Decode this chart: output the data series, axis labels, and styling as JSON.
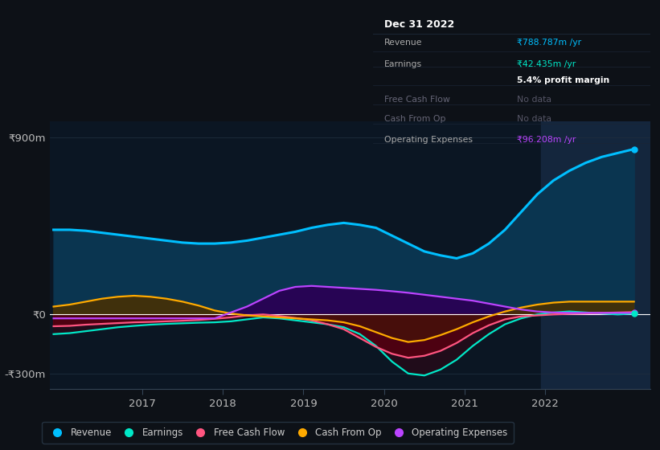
{
  "background_color": "#0d1117",
  "plot_bg_color": "#0b1623",
  "ylim": [
    -380,
    980
  ],
  "yticks": [
    -300,
    0,
    900
  ],
  "ytick_labels": [
    "-₹300m",
    "₹0",
    "₹900m"
  ],
  "xlim": [
    2015.85,
    2023.3
  ],
  "xticks": [
    2017,
    2018,
    2019,
    2020,
    2021,
    2022
  ],
  "years": [
    2015.9,
    2016.1,
    2016.3,
    2016.5,
    2016.7,
    2016.9,
    2017.1,
    2017.3,
    2017.5,
    2017.7,
    2017.9,
    2018.1,
    2018.3,
    2018.5,
    2018.7,
    2018.9,
    2019.1,
    2019.3,
    2019.5,
    2019.7,
    2019.9,
    2020.1,
    2020.3,
    2020.5,
    2020.7,
    2020.9,
    2021.1,
    2021.3,
    2021.5,
    2021.7,
    2021.9,
    2022.1,
    2022.3,
    2022.5,
    2022.7,
    2022.9,
    2023.1
  ],
  "revenue": [
    430,
    430,
    425,
    415,
    405,
    395,
    385,
    375,
    365,
    360,
    360,
    365,
    375,
    390,
    405,
    420,
    440,
    455,
    465,
    455,
    440,
    400,
    360,
    320,
    300,
    285,
    310,
    360,
    430,
    520,
    610,
    680,
    730,
    770,
    800,
    820,
    840
  ],
  "earnings": [
    -100,
    -95,
    -85,
    -75,
    -65,
    -58,
    -52,
    -48,
    -45,
    -42,
    -40,
    -35,
    -25,
    -15,
    -20,
    -30,
    -40,
    -50,
    -65,
    -100,
    -160,
    -240,
    -300,
    -310,
    -280,
    -230,
    -160,
    -100,
    -50,
    -20,
    0,
    10,
    15,
    10,
    5,
    0,
    5
  ],
  "free_cash_flow": [
    -60,
    -58,
    -52,
    -48,
    -44,
    -40,
    -38,
    -35,
    -32,
    -28,
    -22,
    -15,
    -5,
    0,
    -8,
    -18,
    -30,
    -50,
    -75,
    -120,
    -165,
    -200,
    -220,
    -210,
    -185,
    -145,
    -95,
    -55,
    -25,
    -10,
    -5,
    0,
    3,
    5,
    8,
    10,
    12
  ],
  "cash_from_op": [
    40,
    50,
    65,
    80,
    90,
    95,
    90,
    80,
    65,
    45,
    20,
    5,
    -5,
    -10,
    -15,
    -20,
    -25,
    -30,
    -40,
    -60,
    -90,
    -120,
    -140,
    -130,
    -105,
    -75,
    -40,
    -10,
    15,
    35,
    50,
    60,
    65,
    65,
    65,
    65,
    65
  ],
  "operating_expenses": [
    -20,
    -20,
    -20,
    -20,
    -20,
    -20,
    -20,
    -20,
    -20,
    -20,
    -20,
    10,
    40,
    80,
    120,
    140,
    145,
    140,
    135,
    130,
    125,
    118,
    110,
    100,
    90,
    80,
    70,
    55,
    40,
    25,
    15,
    10,
    8,
    8,
    8,
    8,
    8
  ],
  "shaded_region_start": 2021.95,
  "shaded_region_end": 2023.3,
  "revenue_color": "#00bfff",
  "revenue_fill_color": "#0a3550",
  "earnings_color": "#00e8c8",
  "free_cash_flow_color": "#ff5580",
  "cash_from_op_color": "#ffaa00",
  "operating_expenses_color": "#bb44ff",
  "zero_line_color": "#ffffff",
  "grid_color": "#162030",
  "text_color": "#aaaaaa",
  "info_box_rows": [
    {
      "label": "Revenue",
      "value": "₹788.787m /yr",
      "value_color": "#00bfff",
      "label_color": "#aaaaaa"
    },
    {
      "label": "Earnings",
      "value": "₹42.435m /yr",
      "value_color": "#00e8c8",
      "label_color": "#aaaaaa"
    },
    {
      "label": "",
      "value": "5.4% profit margin",
      "value_color": "#ffffff",
      "label_color": "#aaaaaa",
      "bold": true
    },
    {
      "label": "Free Cash Flow",
      "value": "No data",
      "value_color": "#555566",
      "label_color": "#666677"
    },
    {
      "label": "Cash From Op",
      "value": "No data",
      "value_color": "#555566",
      "label_color": "#666677"
    },
    {
      "label": "Operating Expenses",
      "value": "₹96.208m /yr",
      "value_color": "#bb44ff",
      "label_color": "#aaaaaa"
    }
  ],
  "legend": [
    {
      "label": "Revenue",
      "color": "#00bfff"
    },
    {
      "label": "Earnings",
      "color": "#00e8c8"
    },
    {
      "label": "Free Cash Flow",
      "color": "#ff5580"
    },
    {
      "label": "Cash From Op",
      "color": "#ffaa00"
    },
    {
      "label": "Operating Expenses",
      "color": "#bb44ff"
    }
  ]
}
